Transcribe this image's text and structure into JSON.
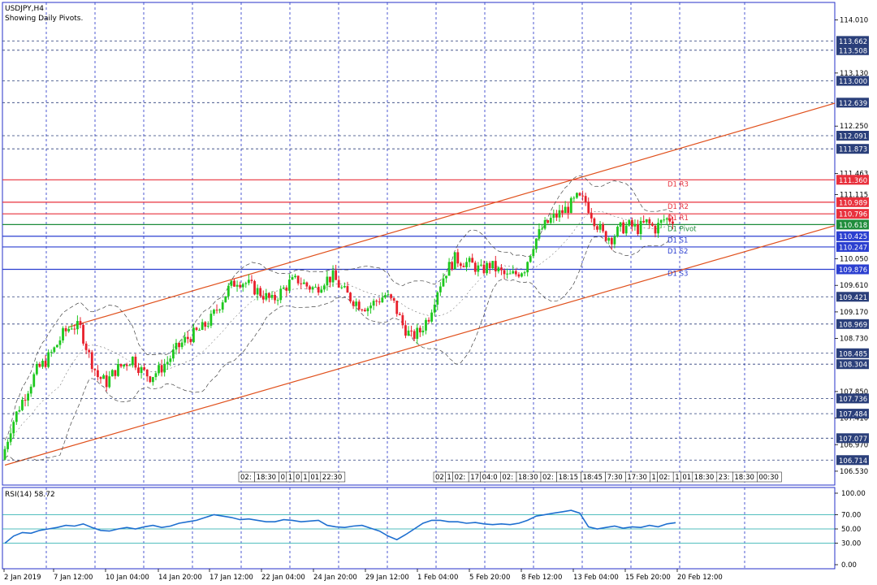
{
  "header": {
    "symbol": "USDJPY,H4",
    "subtitle": "Showing Daily Pivots."
  },
  "chart_data": {
    "type": "candlestick",
    "main": {
      "ylim": [
        106.3,
        114.3
      ],
      "y_tick_labels": [
        "114.010",
        "113.130",
        "112.250",
        "111.463",
        "111.115",
        "110.050",
        "109.610",
        "109.170",
        "108.730",
        "107.850",
        "107.410",
        "106.970",
        "106.530"
      ],
      "price_tags": [
        {
          "value": "113.662",
          "color": "#2a3f7a"
        },
        {
          "value": "113.508",
          "color": "#2a3f7a"
        },
        {
          "value": "113.000",
          "color": "#2a3f7a"
        },
        {
          "value": "112.639",
          "color": "#2a3f7a"
        },
        {
          "value": "112.091",
          "color": "#2a3f7a"
        },
        {
          "value": "111.873",
          "color": "#2a3f7a"
        },
        {
          "value": "111.360",
          "color": "#e8303c"
        },
        {
          "value": "110.989",
          "color": "#e8303c"
        },
        {
          "value": "110.796",
          "color": "#e8303c"
        },
        {
          "value": "110.618",
          "color": "#1e8c3a"
        },
        {
          "value": "110.425",
          "color": "#2b3fd0"
        },
        {
          "value": "110.247",
          "color": "#2b3fd0"
        },
        {
          "value": "109.876",
          "color": "#2b3fd0"
        },
        {
          "value": "109.421",
          "color": "#2a3f7a"
        },
        {
          "value": "108.969",
          "color": "#2a3f7a"
        },
        {
          "value": "108.485",
          "color": "#2a3f7a"
        },
        {
          "value": "108.304",
          "color": "#2a3f7a"
        },
        {
          "value": "107.736",
          "color": "#2a3f7a"
        },
        {
          "value": "107.484",
          "color": "#2a3f7a"
        },
        {
          "value": "107.077",
          "color": "#2a3f7a"
        },
        {
          "value": "106.714",
          "color": "#2a3f7a"
        }
      ],
      "pivots": [
        {
          "label": "D1 R3",
          "value": 111.36,
          "color": "#e8303c"
        },
        {
          "label": "D1 R2",
          "value": 110.989,
          "color": "#e8303c"
        },
        {
          "label": "D1 R1",
          "value": 110.796,
          "color": "#e8303c"
        },
        {
          "label": "D1 Pivot",
          "value": 110.618,
          "color": "#1e8c3a"
        },
        {
          "label": "D1 S1",
          "value": 110.425,
          "color": "#2b3fd0"
        },
        {
          "label": "D1 S2",
          "value": 110.247,
          "color": "#2b3fd0"
        },
        {
          "label": "D1 S3",
          "value": 109.876,
          "color": "#2b3fd0"
        }
      ],
      "price_path": [
        106.72,
        107.25,
        107.6,
        107.9,
        108.2,
        108.35,
        108.55,
        108.8,
        108.95,
        108.9,
        108.45,
        108.1,
        108.0,
        108.2,
        108.3,
        108.4,
        108.2,
        108.1,
        108.2,
        108.35,
        108.55,
        108.7,
        108.8,
        108.9,
        109.05,
        109.3,
        109.55,
        109.7,
        109.65,
        109.55,
        109.45,
        109.35,
        109.5,
        109.65,
        109.7,
        109.6,
        109.55,
        109.7,
        109.75,
        109.55,
        109.4,
        109.3,
        109.25,
        109.35,
        109.45,
        109.3,
        108.95,
        108.75,
        108.85,
        109.1,
        109.55,
        109.85,
        110.05,
        110.0,
        109.95,
        109.85,
        109.95,
        109.85,
        109.75,
        109.8,
        109.9,
        110.3,
        110.55,
        110.7,
        110.8,
        110.9,
        111.05,
        111.0,
        110.7,
        110.45,
        110.4,
        110.55,
        110.6,
        110.55,
        110.65,
        110.55,
        110.7,
        110.72
      ],
      "channel": {
        "upper": [
          108.92,
          112.63
        ],
        "lower": [
          106.63,
          110.6
        ],
        "color": "#e0501c"
      }
    },
    "rsi": {
      "label": "RSI(14) 58.72",
      "ylim": [
        0,
        100
      ],
      "ticks": [
        "100.00",
        "70.00",
        "50.00",
        "30.00",
        "0.00"
      ],
      "levels": [
        70,
        50,
        30
      ],
      "values": [
        30,
        40,
        45,
        44,
        48,
        50,
        52,
        55,
        54,
        57,
        52,
        48,
        47,
        50,
        52,
        50,
        53,
        55,
        52,
        54,
        58,
        60,
        62,
        66,
        70,
        68,
        66,
        63,
        64,
        62,
        60,
        60,
        63,
        62,
        60,
        61,
        62,
        55,
        53,
        52,
        54,
        55,
        51,
        47,
        40,
        35,
        42,
        50,
        58,
        62,
        62,
        60,
        60,
        58,
        59,
        57,
        56,
        57,
        56,
        58,
        62,
        68,
        70,
        72,
        74,
        76,
        72,
        53,
        50,
        52,
        54,
        51,
        53,
        52,
        55,
        53,
        57,
        58.72
      ],
      "color": "#1e6fd0"
    },
    "time_labels": [
      "2 Jan 2019",
      "7 Jan 12:00",
      "10 Jan 04:00",
      "14 Jan 20:00",
      "17 Jan 12:00",
      "22 Jan 04:00",
      "24 Jan 20:00",
      "29 Jan 12:00",
      "1 Feb 04:00",
      "5 Feb 20:00",
      "8 Feb 12:00",
      "13 Feb 04:00",
      "15 Feb 20:00",
      "20 Feb 12:00"
    ],
    "session_tags_a": [
      "02:",
      "18:30",
      "0",
      "1",
      "0",
      "1",
      "01",
      "22:30"
    ],
    "session_tags_b": [
      "02",
      "1",
      "02:",
      "17",
      "04:0",
      "02:",
      "18:30",
      "02:",
      "18:15",
      "18:45",
      "7:30",
      "17:30",
      "1",
      "02:",
      "1",
      "01",
      "18:30",
      "23:",
      "18:30",
      "00:30"
    ]
  }
}
